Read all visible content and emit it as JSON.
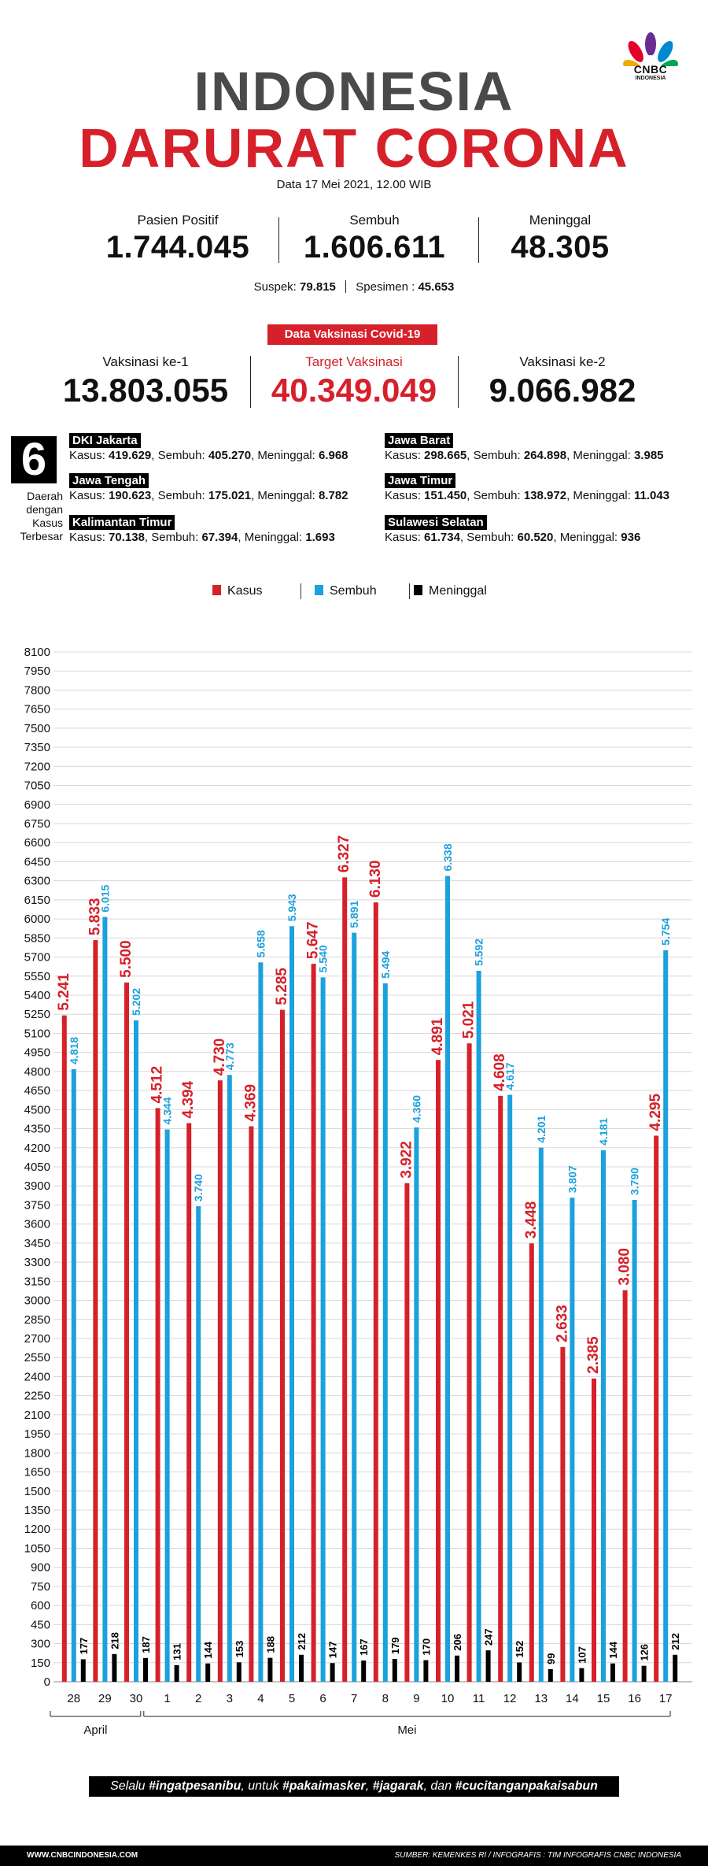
{
  "header": {
    "logo_text": "CNBC",
    "logo_sub": "INDONESIA",
    "title_line1": "INDONESIA",
    "title_line2": "DARURAT CORONA",
    "date": "Data 17 Mei 2021, 12.00 WIB"
  },
  "stats": [
    {
      "label": "Pasien Positif",
      "value": "1.744.045"
    },
    {
      "label": "Sembuh",
      "value": "1.606.611"
    },
    {
      "label": "Meninggal",
      "value": "48.305"
    }
  ],
  "suspek": {
    "label": "Suspek:",
    "value": "79.815",
    "label2": "Spesimen :",
    "value2": "45.653"
  },
  "vaccine": {
    "badge": "Data Vaksinasi Covid-19",
    "items": [
      {
        "label": "Vaksinasi ke-1",
        "value": "13.803.055"
      },
      {
        "label": "Target Vaksinasi",
        "value": "40.349.049"
      },
      {
        "label": "Vaksinasi ke-2",
        "value": "9.066.982"
      }
    ]
  },
  "regions_block": {
    "number": "6",
    "caption": [
      "Daerah",
      "dengan",
      "Kasus",
      "Terbesar"
    ],
    "regions": [
      {
        "name": "DKI Jakarta",
        "kasus": "419.629",
        "sembuh": "405.270",
        "meninggal": "6.968"
      },
      {
        "name": "Jawa Barat",
        "kasus": "298.665",
        "sembuh": "264.898",
        "meninggal": "3.985"
      },
      {
        "name": "Jawa Tengah",
        "kasus": "190.623",
        "sembuh": "175.021",
        "meninggal": "8.782"
      },
      {
        "name": "Jawa Timur",
        "kasus": "151.450",
        "sembuh": "138.972",
        "meninggal": "11.043"
      },
      {
        "name": "Kalimantan Timur",
        "kasus": "70.138",
        "sembuh": "67.394",
        "meninggal": "1.693"
      },
      {
        "name": "Sulawesi Selatan",
        "kasus": "61.734",
        "sembuh": "60.520",
        "meninggal": "936"
      }
    ],
    "labels": {
      "kasus": "Kasus:",
      "sembuh": "Sembuh:",
      "meninggal": "Meninggal:"
    }
  },
  "chart_data": {
    "type": "bar",
    "legend": [
      "Kasus",
      "Sembuh",
      "Meninggal"
    ],
    "categories": [
      "28",
      "29",
      "30",
      "1",
      "2",
      "3",
      "4",
      "5",
      "6",
      "7",
      "8",
      "9",
      "10",
      "11",
      "12",
      "13",
      "14",
      "15",
      "16",
      "17"
    ],
    "month_groups": [
      {
        "label": "April",
        "from": 0,
        "to": 2
      },
      {
        "label": "Mei",
        "from": 3,
        "to": 19
      }
    ],
    "series": [
      {
        "name": "Kasus",
        "color": "#d6202a",
        "values": [
          5241,
          5833,
          5500,
          4512,
          4394,
          4730,
          4369,
          5285,
          5647,
          6327,
          6130,
          3922,
          4891,
          5021,
          4608,
          3448,
          2633,
          2385,
          3080,
          4295
        ],
        "labels": [
          "5.241",
          "5.833",
          "5.500",
          "4.512",
          "4.394",
          "4.730",
          "4.369",
          "5.285",
          "5.647",
          "6.327",
          "6.130",
          "3.922",
          "4.891",
          "5.021",
          "4.608",
          "3.448",
          "2.633",
          "2.385",
          "3.080",
          "4.295"
        ]
      },
      {
        "name": "Sembuh",
        "color": "#1ba1dd",
        "values": [
          4818,
          6015,
          5202,
          4344,
          3740,
          4773,
          5658,
          5943,
          5540,
          5891,
          5494,
          4360,
          6338,
          5592,
          4617,
          4201,
          3807,
          4181,
          3790,
          5754
        ],
        "labels": [
          "4.818",
          "6.015",
          "5.202",
          "4.344",
          "3.740",
          "4.773",
          "5.658",
          "5.943",
          "5.540",
          "5.891",
          "5.494",
          "4.360",
          "6.338",
          "5.592",
          "4.617",
          "4.201",
          "3.807",
          "4.181",
          "3.790",
          "5.754"
        ]
      },
      {
        "name": "Meninggal",
        "color": "#000000",
        "values": [
          177,
          218,
          187,
          131,
          144,
          153,
          188,
          212,
          147,
          167,
          179,
          170,
          206,
          247,
          152,
          99,
          107,
          144,
          126,
          212
        ],
        "labels": [
          "177",
          "218",
          "187",
          "131",
          "144",
          "153",
          "188",
          "212",
          "147",
          "167",
          "179",
          "170",
          "206",
          "247",
          "152",
          "99",
          "107",
          "144",
          "126",
          "212"
        ]
      }
    ],
    "ylim": [
      0,
      8100
    ],
    "ytick_step": 150,
    "grid": true
  },
  "footer": {
    "pill_pre": "Selalu ",
    "tag1": "#ingatpesanibu",
    "mid1": ", untuk ",
    "tag2": "#pakaimasker",
    "mid2": ", ",
    "tag3": "#jagarak",
    "mid3": ", dan ",
    "tag4": "#cucitanganpakaisabun",
    "site": "WWW.CNBCINDONESIA.COM",
    "source": "SUMBER: KEMENKES RI / INFOGRAFIS : TIM INFOGRAFIS CNBC INDONESIA"
  }
}
